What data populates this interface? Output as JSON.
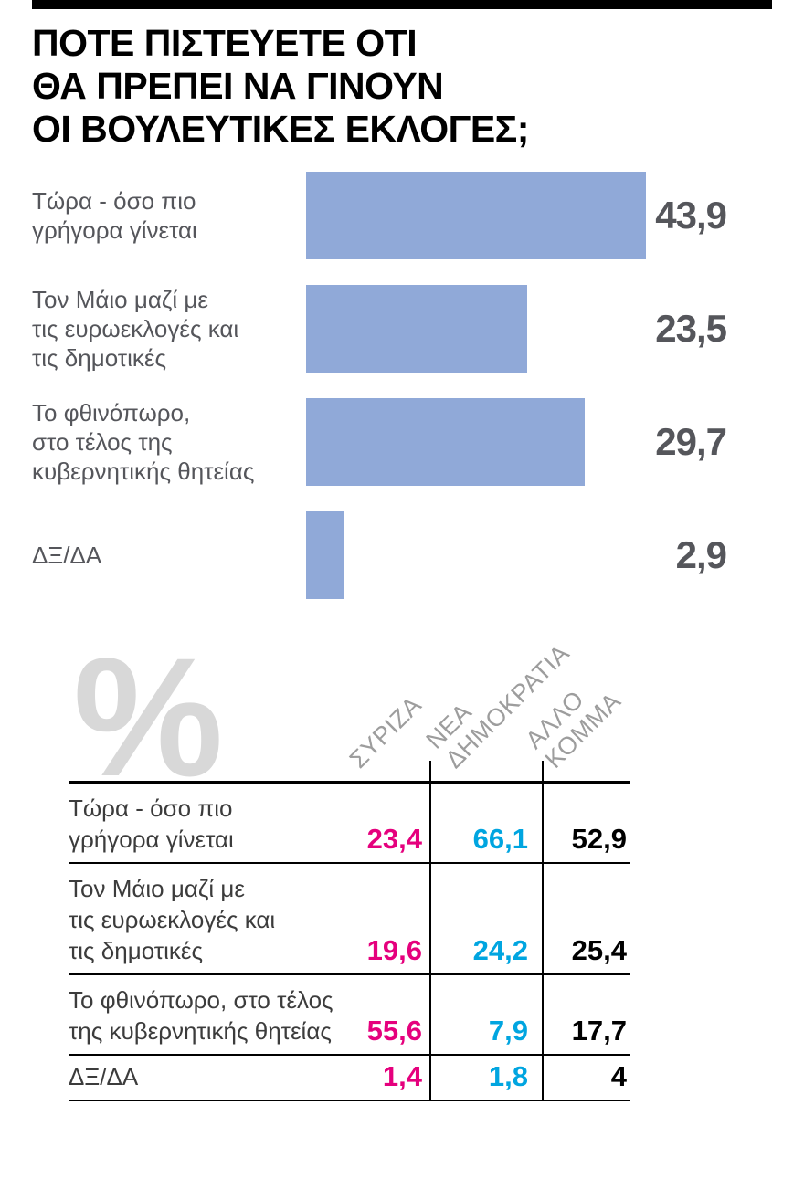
{
  "title": "ΠΟΤΕ ΠΙΣΤΕΥΕΤΕ ΟΤΙ\nΘΑ ΠΡΕΠΕΙ ΝΑ ΓΙΝΟΥΝ\nΟΙ ΒΟΥΛΕΥΤΙΚΕΣ ΕΚΛΟΓΕΣ;",
  "colors": {
    "bar": "#90a9d8",
    "syriza_value": "#e5007d",
    "nea_dimokratia_value": "#00a5e0",
    "other_value": "#000000",
    "chart_text": "#55565b",
    "table_header": "#9d9d9d",
    "watermark": "#d8d8d8"
  },
  "chart_data": [
    {
      "type": "bar",
      "orientation": "horizontal",
      "title": "ΠΟΤΕ ΠΙΣΤΕΥΕΤΕ ΟΤΙ ΘΑ ΠΡΕΠΕΙ ΝΑ ΓΙΝΟΥΝ ΟΙ ΒΟΥΛΕΥΤΙΚΕΣ ΕΚΛΟΓΕΣ;",
      "categories": [
        "Τώρα - όσο πιο γρήγορα γίνεται",
        "Τον Μάιο μαζί με τις ευρωεκλογές και τις δημοτικές",
        "Το φθινόπωρο, στο τέλος της κυβερνητικής θητείας",
        "ΔΞ/ΔΑ"
      ],
      "category_labels": [
        "Τώρα - όσο πιο\nγρήγορα γίνεται",
        "Τον Μάιο μαζί με\nτις ευρωεκλογές και\nτις δημοτικές",
        "Το φθινόπωρο,\nστο τέλος της\nκυβερνητικής θητείας",
        "ΔΞ/ΔΑ"
      ],
      "values": [
        43.9,
        23.5,
        29.7,
        2.9
      ],
      "value_labels": [
        "43,9",
        "23,5",
        "29,7",
        "2,9"
      ],
      "xlim": [
        0,
        43.9
      ],
      "bar_lengths_pct": [
        100,
        65,
        82,
        11
      ],
      "grid": false,
      "axis_labels": "none",
      "bar_color": "#90a9d8"
    },
    {
      "type": "table",
      "unit_symbol": "%",
      "columns": [
        "ΣΥΡΙΖΑ",
        "ΝΕΑ ΔΗΜΟΚΡΑΤΙΑ",
        "ΑΛΛΟ ΚΟΜΜΑ"
      ],
      "column_labels": [
        "ΣΥΡΙΖΑ",
        "ΝΕΑ ΔΗΜΟΚΡΑΤΙΑ",
        "ΑΛΛΟ\nΚΟΜΜΑ"
      ],
      "rows": [
        {
          "label": "Τώρα - όσο πιο\nγρήγορα γίνεται",
          "values": [
            "23,4",
            "66,1",
            "52,9"
          ],
          "numeric": [
            23.4,
            66.1,
            52.9
          ]
        },
        {
          "label": "Τον Μάιο μαζί με\nτις ευρωεκλογές και\nτις δημοτικές",
          "values": [
            "19,6",
            "24,2",
            "25,4"
          ],
          "numeric": [
            19.6,
            24.2,
            25.4
          ]
        },
        {
          "label": "Το φθινόπωρο, στο τέλος\nτης κυβερνητικής θητείας",
          "values": [
            "55,6",
            "7,9",
            "17,7"
          ],
          "numeric": [
            55.6,
            7.9,
            17.7
          ]
        },
        {
          "label": "ΔΞ/ΔΑ",
          "values": [
            "1,4",
            "1,8",
            "4"
          ],
          "numeric": [
            1.4,
            1.8,
            4
          ]
        }
      ]
    }
  ]
}
